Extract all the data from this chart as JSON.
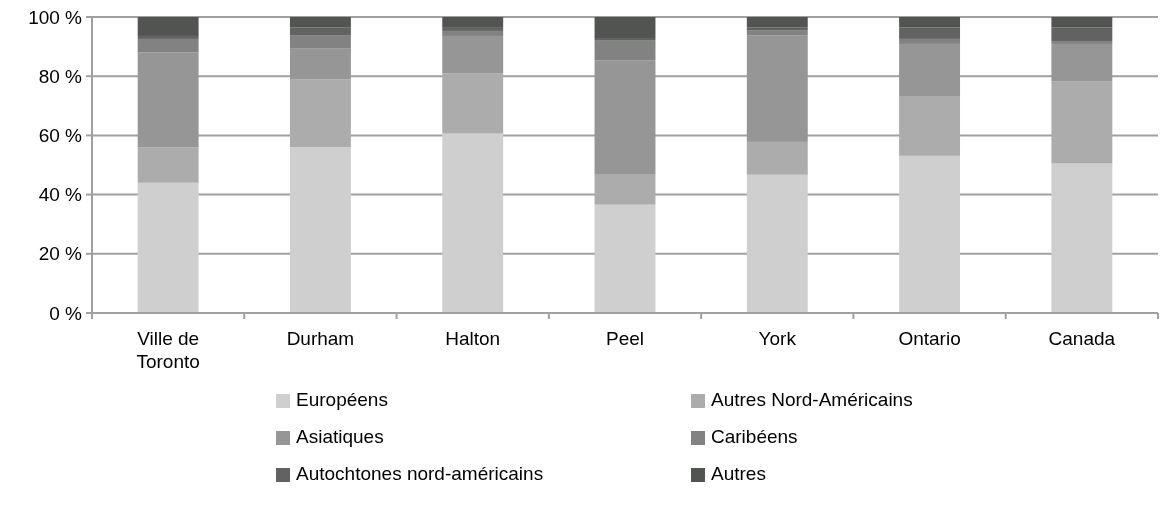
{
  "chart_data": {
    "type": "bar",
    "stacked": true,
    "categories": [
      "Ville de Toronto",
      "Durham",
      "Halton",
      "Peel",
      "York",
      "Ontario",
      "Canada"
    ],
    "series": [
      {
        "name": "Européens",
        "color": "#cfcfcf",
        "values": [
          44,
          56,
          60.6,
          36.6,
          46.7,
          53.1,
          50.5
        ]
      },
      {
        "name": "Autres Nord-Américains",
        "color": "#acacac",
        "values": [
          12,
          23,
          20.4,
          10.1,
          11.1,
          20.2,
          27.7
        ]
      },
      {
        "name": "Asiatiques",
        "color": "#969696",
        "values": [
          32,
          10.3,
          12.6,
          38.7,
          35.9,
          17.6,
          12.7
        ]
      },
      {
        "name": "Caribéens",
        "color": "#828282",
        "values": [
          4.6,
          4.4,
          1.7,
          6.6,
          1.7,
          1.7,
          1.0
        ]
      },
      {
        "name": "Autochtones nord-américains",
        "color": "#626262",
        "values": [
          1,
          2.7,
          1.3,
          0.6,
          1,
          3.8,
          4.5
        ]
      },
      {
        "name": "Autres",
        "color": "#525452",
        "values": [
          6.4,
          3.6,
          3.4,
          7.4,
          3.6,
          3.6,
          3.6
        ]
      }
    ],
    "ylim": [
      0,
      100
    ],
    "yticks": [
      {
        "value": 0,
        "label": "0 %"
      },
      {
        "value": 20,
        "label": "20 %"
      },
      {
        "value": 40,
        "label": "40 %"
      },
      {
        "value": 60,
        "label": "60 %"
      },
      {
        "value": 80,
        "label": "80 %"
      },
      {
        "value": 100,
        "label": "100 %"
      }
    ],
    "grid": "y",
    "legend": "bottom"
  }
}
